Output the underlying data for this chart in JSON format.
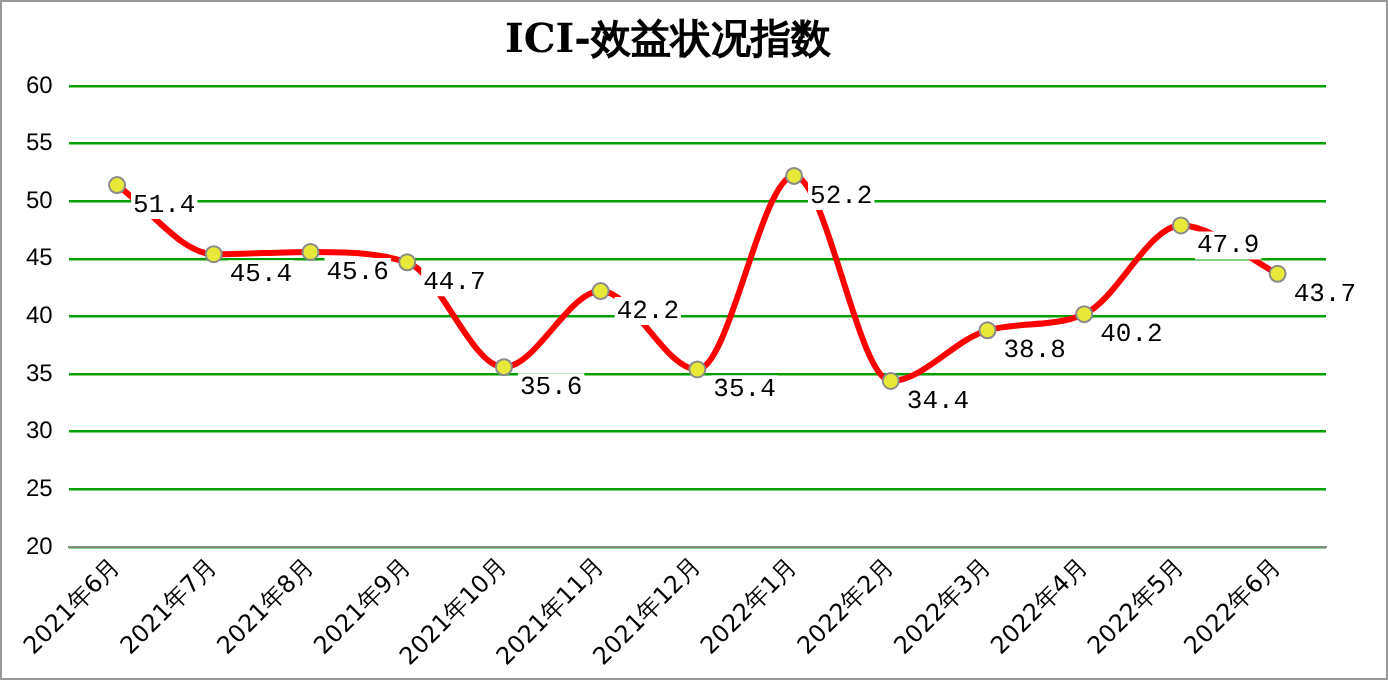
{
  "chart_data": {
    "type": "line",
    "title": "ICI-效益状况指数",
    "categories": [
      "2021年6月",
      "2021年7月",
      "2021年8月",
      "2021年9月",
      "2021年10月",
      "2021年11月",
      "2021年12月",
      "2022年1月",
      "2022年2月",
      "2022年3月",
      "2022年4月",
      "2022年5月",
      "2022年6月"
    ],
    "series": [
      {
        "color": "#ff0000",
        "values": [
          51.4,
          45.4,
          45.6,
          44.7,
          35.6,
          42.2,
          35.4,
          52.2,
          34.4,
          38.8,
          40.2,
          47.9,
          43.7
        ]
      }
    ],
    "ylim": [
      20,
      60
    ],
    "yticks": [
      20,
      25,
      30,
      35,
      40,
      45,
      50,
      55,
      60
    ],
    "grid": "y",
    "marker": "circle",
    "line_style": "solid",
    "data_labels": true
  }
}
